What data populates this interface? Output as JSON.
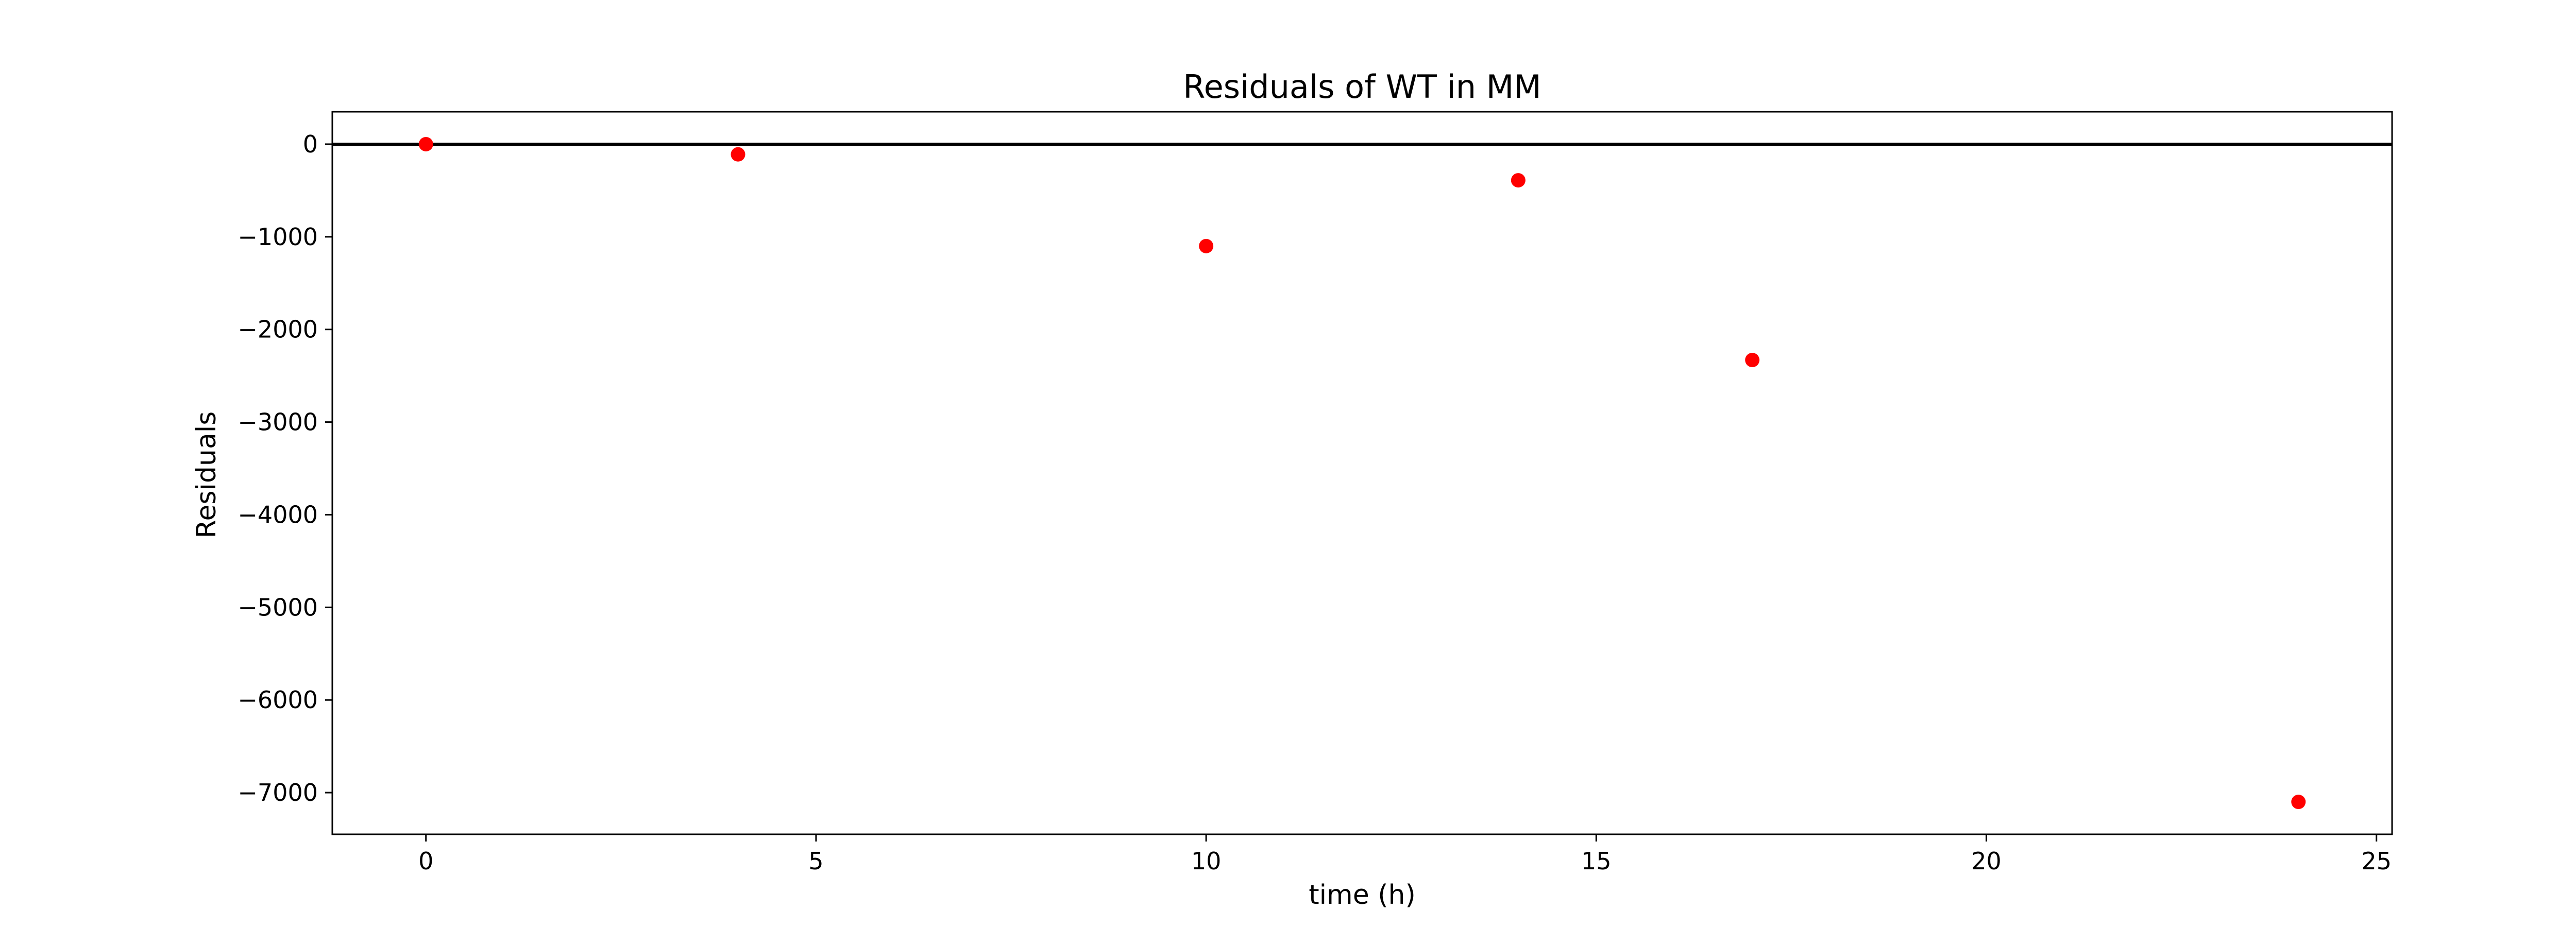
{
  "chart_data": {
    "type": "scatter",
    "title": "Residuals of WT in MM",
    "xlabel": "time (h)",
    "ylabel": "Residuals",
    "xlim": [
      -1.2,
      25.2
    ],
    "ylim": [
      -7450,
      350
    ],
    "xticks": [
      0,
      5,
      10,
      15,
      20,
      25
    ],
    "yticks": [
      0,
      -1000,
      -2000,
      -3000,
      -4000,
      -5000,
      -6000,
      -7000
    ],
    "xtick_labels": [
      "0",
      "5",
      "10",
      "15",
      "20",
      "25"
    ],
    "ytick_labels": [
      "0",
      "−1000",
      "−2000",
      "−3000",
      "−4000",
      "−5000",
      "−6000",
      "−7000"
    ],
    "reference_line": 0,
    "grid": false,
    "series": [
      {
        "color": "#ff0000",
        "points": [
          {
            "x": 0,
            "y": 0
          },
          {
            "x": 4,
            "y": -110
          },
          {
            "x": 10,
            "y": -1100
          },
          {
            "x": 14,
            "y": -390
          },
          {
            "x": 17,
            "y": -2330
          },
          {
            "x": 24,
            "y": -7100
          }
        ]
      }
    ],
    "colors": {
      "reference_line": "#000000",
      "axes": "#000000"
    }
  }
}
